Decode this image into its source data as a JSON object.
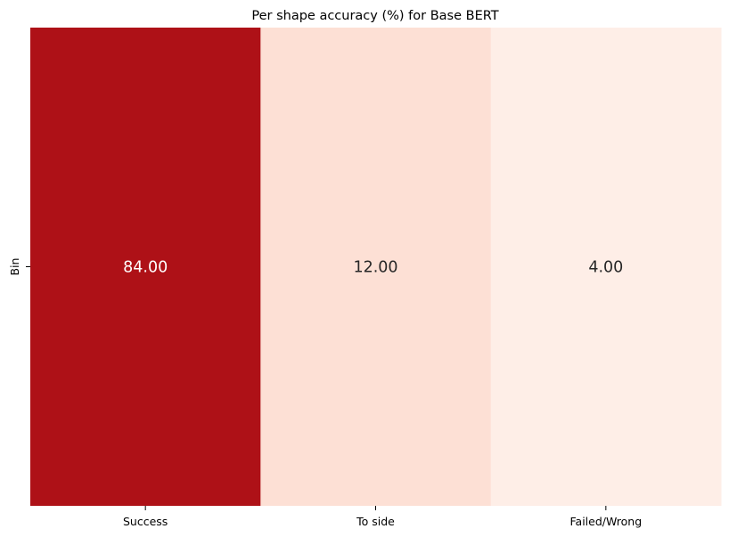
{
  "chart_data": {
    "type": "heatmap",
    "title": "Per shape accuracy (%) for Base BERT",
    "xlabel": "",
    "ylabel": "",
    "x_categories": [
      "Success",
      "To side",
      "Failed/Wrong"
    ],
    "y_categories": [
      "Bin"
    ],
    "values": [
      [
        84.0,
        12.0,
        4.0
      ]
    ],
    "value_format": "2 decimals",
    "colormap": "Reds",
    "colorbar": false,
    "cell_colors": [
      "#ae1117",
      "#fde0d5",
      "#feeee7"
    ],
    "label_colors": [
      "#ffffff",
      "#262626",
      "#262626"
    ]
  }
}
